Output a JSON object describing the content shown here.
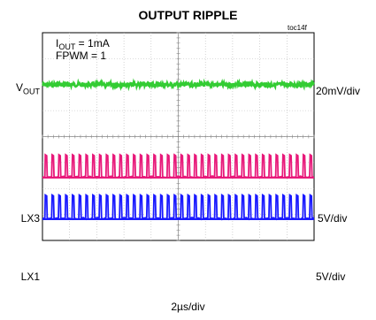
{
  "chart_data": {
    "type": "line",
    "title": "OUTPUT RIPPLE",
    "tag": "toc14f",
    "xlabel": "2µs/div",
    "grid": true,
    "divisions": {
      "x": 10,
      "y": 8
    },
    "annotations": {
      "iout_prefix": "I",
      "iout_sub": "OUT",
      "iout_value": " = 1mA",
      "fpwm": "FPWM = 1"
    },
    "series": [
      {
        "name": "V",
        "name_sub": "OUT",
        "scale": "20mV/div",
        "color": "#33cc33",
        "baseline_div": 6.0,
        "kind": "ripple",
        "amplitude_div": 0.08
      },
      {
        "name": "LX3",
        "scale": "5V/div",
        "color": "#e8197a",
        "baseline_div": 2.45,
        "kind": "switching",
        "pulses": 40,
        "high_div": 0.85
      },
      {
        "name": "LX1",
        "scale": "5V/div",
        "color": "#1a1aff",
        "baseline_div": 0.85,
        "kind": "switching",
        "pulses": 40,
        "high_div": 0.9
      }
    ]
  }
}
